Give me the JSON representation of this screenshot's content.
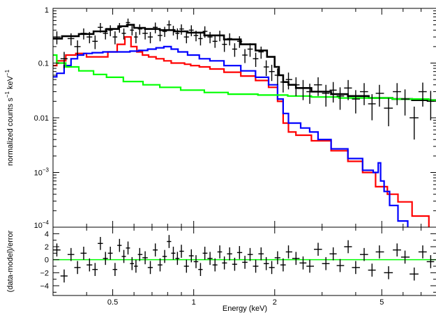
{
  "chart_data": [
    {
      "type": "line",
      "panel": "spectrum",
      "xscale": "log",
      "yscale": "log",
      "xlim": [
        0.3,
        8.0
      ],
      "ylim": [
        0.0001,
        1
      ],
      "ylabel_text": "normalized counts s",
      "ylabel_sup1": "−1",
      "ylabel_text2": " keV",
      "ylabel_sup2": "−1",
      "yticks": [
        {
          "value": 1,
          "label": "1",
          "sup": ""
        },
        {
          "value": 0.1,
          "label": "0.1",
          "sup": ""
        },
        {
          "value": 0.01,
          "label": "0.01",
          "sup": ""
        },
        {
          "value": 0.001,
          "label": "10",
          "sup": "−3"
        },
        {
          "value": 0.0001,
          "label": "10",
          "sup": "−4"
        }
      ],
      "colors": {
        "data": "#000000",
        "total_model": "#000000",
        "red_component": "#ff0000",
        "blue_component": "#0000ff",
        "green_component": "#00ff00"
      },
      "series": [
        {
          "role": "data",
          "color": "#000000",
          "x": [
            0.31,
            0.33,
            0.35,
            0.37,
            0.39,
            0.41,
            0.43,
            0.45,
            0.47,
            0.49,
            0.51,
            0.53,
            0.55,
            0.57,
            0.59,
            0.61,
            0.63,
            0.66,
            0.69,
            0.72,
            0.75,
            0.78,
            0.81,
            0.84,
            0.87,
            0.9,
            0.94,
            0.98,
            1.02,
            1.06,
            1.1,
            1.15,
            1.2,
            1.25,
            1.3,
            1.36,
            1.42,
            1.48,
            1.55,
            1.62,
            1.7,
            1.78,
            1.86,
            1.95,
            2.05,
            2.15,
            2.25,
            2.4,
            2.55,
            2.7,
            2.9,
            3.1,
            3.3,
            3.5,
            3.75,
            4.0,
            4.3,
            4.6,
            4.9,
            5.3,
            5.7,
            6.1,
            6.6,
            7.1,
            7.6
          ],
          "y": [
            0.3,
            0.12,
            0.28,
            0.2,
            0.35,
            0.3,
            0.25,
            0.45,
            0.35,
            0.4,
            0.3,
            0.45,
            0.35,
            0.55,
            0.4,
            0.3,
            0.42,
            0.35,
            0.3,
            0.45,
            0.32,
            0.38,
            0.5,
            0.4,
            0.35,
            0.42,
            0.3,
            0.4,
            0.32,
            0.28,
            0.38,
            0.3,
            0.25,
            0.32,
            0.22,
            0.28,
            0.18,
            0.25,
            0.14,
            0.18,
            0.12,
            0.16,
            0.085,
            0.07,
            0.06,
            0.045,
            0.05,
            0.04,
            0.035,
            0.03,
            0.04,
            0.028,
            0.032,
            0.025,
            0.035,
            0.022,
            0.03,
            0.018,
            0.028,
            0.015,
            0.03,
            0.022,
            0.01,
            0.03,
            0.02
          ],
          "err_lo": [
            0.22,
            0.08,
            0.21,
            0.14,
            0.27,
            0.23,
            0.18,
            0.36,
            0.27,
            0.31,
            0.22,
            0.36,
            0.27,
            0.45,
            0.32,
            0.23,
            0.33,
            0.27,
            0.23,
            0.35,
            0.25,
            0.3,
            0.4,
            0.32,
            0.27,
            0.33,
            0.23,
            0.31,
            0.25,
            0.21,
            0.29,
            0.23,
            0.19,
            0.25,
            0.16,
            0.21,
            0.13,
            0.19,
            0.1,
            0.13,
            0.085,
            0.12,
            0.058,
            0.047,
            0.04,
            0.029,
            0.033,
            0.025,
            0.021,
            0.018,
            0.025,
            0.016,
            0.019,
            0.014,
            0.021,
            0.012,
            0.017,
            0.009,
            0.016,
            0.007,
            0.017,
            0.011,
            0.004,
            0.016,
            0.009
          ],
          "err_hi": [
            0.38,
            0.16,
            0.35,
            0.26,
            0.43,
            0.37,
            0.32,
            0.54,
            0.43,
            0.49,
            0.38,
            0.54,
            0.43,
            0.65,
            0.48,
            0.37,
            0.51,
            0.43,
            0.37,
            0.55,
            0.39,
            0.46,
            0.6,
            0.48,
            0.43,
            0.51,
            0.37,
            0.49,
            0.39,
            0.35,
            0.47,
            0.37,
            0.31,
            0.39,
            0.28,
            0.35,
            0.23,
            0.31,
            0.18,
            0.23,
            0.155,
            0.2,
            0.112,
            0.093,
            0.08,
            0.061,
            0.067,
            0.055,
            0.049,
            0.042,
            0.055,
            0.04,
            0.045,
            0.036,
            0.049,
            0.032,
            0.043,
            0.027,
            0.04,
            0.023,
            0.043,
            0.033,
            0.016,
            0.044,
            0.031
          ]
        },
        {
          "role": "total_model",
          "color": "#000000",
          "x": [
            0.3,
            0.35,
            0.4,
            0.45,
            0.5,
            0.55,
            0.58,
            0.62,
            0.7,
            0.8,
            0.9,
            1.0,
            1.2,
            1.4,
            1.6,
            1.8,
            1.95,
            2.05,
            2.1,
            2.2,
            2.3,
            2.5,
            3.0,
            3.5,
            4.0,
            5.0,
            6.0,
            7.0,
            8.0
          ],
          "y": [
            0.28,
            0.31,
            0.34,
            0.38,
            0.42,
            0.47,
            0.5,
            0.44,
            0.42,
            0.4,
            0.38,
            0.36,
            0.32,
            0.27,
            0.22,
            0.17,
            0.13,
            0.085,
            0.06,
            0.045,
            0.04,
            0.035,
            0.03,
            0.027,
            0.025,
            0.023,
            0.022,
            0.021,
            0.021
          ]
        },
        {
          "role": "red_component",
          "color": "#ff0000",
          "x": [
            0.3,
            0.32,
            0.35,
            0.38,
            0.42,
            0.46,
            0.5,
            0.54,
            0.57,
            0.6,
            0.63,
            0.66,
            0.7,
            0.75,
            0.8,
            0.85,
            0.9,
            0.95,
            1.0,
            1.1,
            1.2,
            1.4,
            1.6,
            1.8,
            2.0,
            2.1,
            2.2,
            2.3,
            2.5,
            3.0,
            3.5,
            4.0,
            4.5,
            5.0,
            5.5,
            6.0,
            7.0,
            8.0
          ],
          "y": [
            0.09,
            0.11,
            0.14,
            0.15,
            0.13,
            0.13,
            0.16,
            0.22,
            0.3,
            0.2,
            0.16,
            0.14,
            0.13,
            0.12,
            0.11,
            0.1,
            0.1,
            0.095,
            0.09,
            0.085,
            0.078,
            0.068,
            0.058,
            0.048,
            0.036,
            0.02,
            0.008,
            0.0055,
            0.0048,
            0.0038,
            0.0025,
            0.0016,
            0.001,
            0.00055,
            0.0004,
            0.00029,
            0.00016,
            9e-05
          ]
        },
        {
          "role": "blue_component",
          "color": "#0000ff",
          "x": [
            0.3,
            0.32,
            0.34,
            0.36,
            0.38,
            0.4,
            0.44,
            0.48,
            0.52,
            0.56,
            0.6,
            0.65,
            0.7,
            0.75,
            0.8,
            0.85,
            0.9,
            1.0,
            1.1,
            1.2,
            1.4,
            1.6,
            1.8,
            2.0,
            2.1,
            2.2,
            2.3,
            2.4,
            2.6,
            2.8,
            3.0,
            3.5,
            4.0,
            4.5,
            4.8,
            4.9,
            5.0,
            5.2,
            5.5,
            6.0,
            6.5
          ],
          "y": [
            0.056,
            0.065,
            0.09,
            0.12,
            0.14,
            0.15,
            0.155,
            0.16,
            0.16,
            0.16,
            0.165,
            0.17,
            0.18,
            0.19,
            0.2,
            0.18,
            0.16,
            0.14,
            0.12,
            0.11,
            0.09,
            0.072,
            0.055,
            0.04,
            0.022,
            0.012,
            0.008,
            0.008,
            0.0065,
            0.0055,
            0.004,
            0.0027,
            0.0018,
            0.0011,
            0.001,
            0.0015,
            0.0007,
            0.00045,
            0.00025,
            0.00013,
            9e-05
          ]
        },
        {
          "role": "green_component",
          "color": "#00ff00",
          "x": [
            0.3,
            0.32,
            0.35,
            0.4,
            0.45,
            0.5,
            0.6,
            0.7,
            0.8,
            1.0,
            1.2,
            1.5,
            2.0,
            2.5,
            3.0,
            4.0,
            5.0,
            6.0,
            7.0,
            8.0
          ],
          "y": [
            0.14,
            0.1,
            0.085,
            0.072,
            0.062,
            0.055,
            0.046,
            0.04,
            0.036,
            0.032,
            0.029,
            0.027,
            0.026,
            0.025,
            0.024,
            0.023,
            0.023,
            0.022,
            0.022,
            0.021
          ]
        }
      ]
    },
    {
      "type": "scatter",
      "panel": "residuals",
      "xscale": "log",
      "xlim": [
        0.3,
        8.0
      ],
      "ylim": [
        -5.5,
        5
      ],
      "ylabel": "(data-model)/error",
      "xlabel": "Energy (keV)",
      "yticks": [
        {
          "value": 4,
          "label": "4"
        },
        {
          "value": 2,
          "label": "2"
        },
        {
          "value": 0,
          "label": "0"
        },
        {
          "value": -2,
          "label": "−2"
        },
        {
          "value": -4,
          "label": "−4"
        }
      ],
      "xticks": [
        {
          "value": 0.5,
          "label": "0.5"
        },
        {
          "value": 1,
          "label": "1"
        },
        {
          "value": 2,
          "label": "2"
        },
        {
          "value": 5,
          "label": "5"
        }
      ],
      "zero_line_color": "#00ff00",
      "series": [
        {
          "role": "residuals",
          "color": "#000000",
          "x": [
            0.31,
            0.33,
            0.35,
            0.37,
            0.39,
            0.41,
            0.43,
            0.45,
            0.47,
            0.49,
            0.51,
            0.53,
            0.55,
            0.57,
            0.59,
            0.61,
            0.63,
            0.66,
            0.69,
            0.72,
            0.75,
            0.78,
            0.81,
            0.84,
            0.87,
            0.9,
            0.94,
            0.98,
            1.02,
            1.06,
            1.1,
            1.15,
            1.2,
            1.25,
            1.3,
            1.36,
            1.42,
            1.48,
            1.55,
            1.62,
            1.7,
            1.78,
            1.86,
            1.95,
            2.05,
            2.15,
            2.25,
            2.4,
            2.55,
            2.7,
            2.9,
            3.1,
            3.3,
            3.5,
            3.75,
            4.0,
            4.3,
            4.6,
            4.9,
            5.3,
            5.7,
            6.1,
            6.6,
            7.1,
            7.6
          ],
          "y": [
            1.5,
            -2.5,
            0.8,
            -1.2,
            1.0,
            -0.8,
            -1.5,
            2.5,
            0.2,
            1.0,
            -1.5,
            2.2,
            0.5,
            1.8,
            -0.6,
            -1.0,
            0.8,
            0.3,
            -1.2,
            1.5,
            -0.8,
            0.5,
            2.8,
            1.0,
            0.2,
            1.3,
            -1.0,
            0.6,
            -0.3,
            -1.5,
            1.0,
            0.2,
            -0.8,
            1.2,
            -0.5,
            0.9,
            -0.7,
            1.1,
            -0.4,
            0.8,
            -1.0,
            0.9,
            -0.6,
            -1.2,
            0.3,
            -0.8,
            1.2,
            0.2,
            -0.5,
            -1.0,
            1.6,
            -0.6,
            0.9,
            -0.9,
            2.0,
            -1.2,
            0.8,
            -1.6,
            1.2,
            -2.0,
            1.5,
            0.4,
            -2.2,
            1.2,
            -0.3
          ]
        }
      ]
    }
  ]
}
